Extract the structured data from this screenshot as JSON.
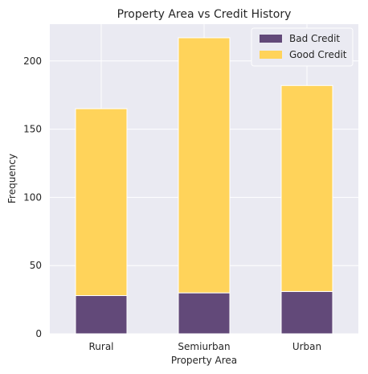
{
  "chart_data": {
    "type": "bar",
    "stacked": true,
    "title": "Property Area vs Credit History",
    "xlabel": "Property Area",
    "ylabel": "Frequency",
    "categories": [
      "Rural",
      "Semiurban",
      "Urban"
    ],
    "series": [
      {
        "name": "Bad Credit",
        "values": [
          28,
          30,
          31
        ],
        "color": "#624979"
      },
      {
        "name": "Good Credit",
        "values": [
          137,
          187,
          151
        ],
        "color": "#FFD35A"
      }
    ],
    "ylim": [
      0,
      227
    ],
    "yticks": [
      0,
      50,
      100,
      150,
      200
    ],
    "grid": true,
    "legend_position": "top-right",
    "background": "#EAEAF2"
  }
}
